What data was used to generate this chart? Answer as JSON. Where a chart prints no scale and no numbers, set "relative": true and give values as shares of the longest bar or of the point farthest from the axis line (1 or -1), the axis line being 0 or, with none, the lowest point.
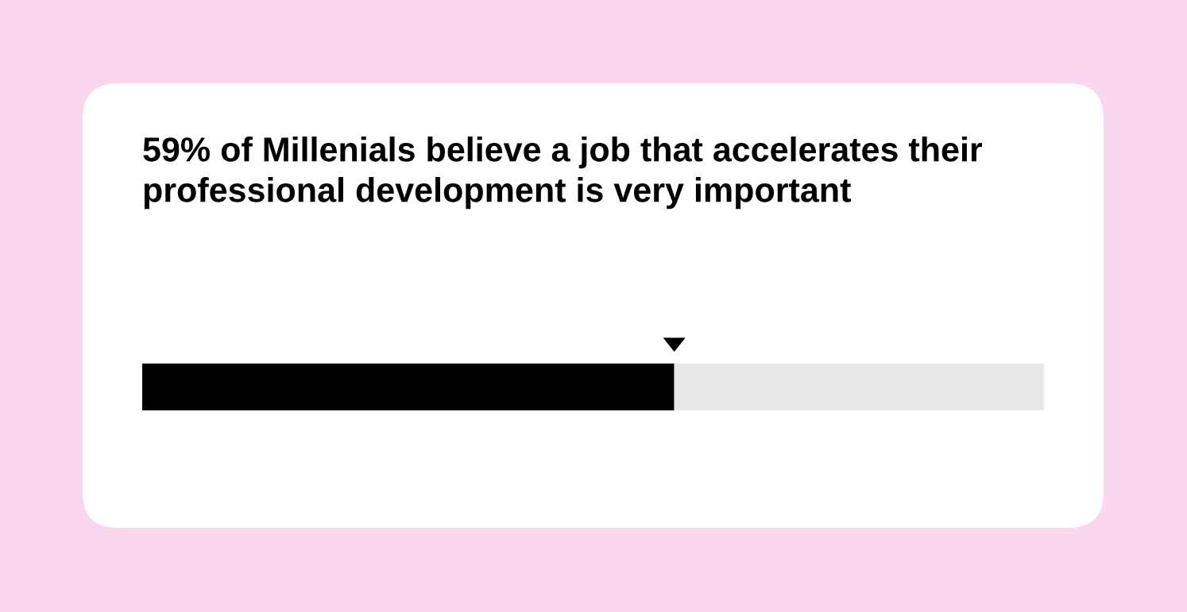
{
  "chart_data": {
    "type": "bar",
    "orientation": "horizontal",
    "stacked": true,
    "relative": true,
    "title": "59% of Millenials believe a job that accelerates their professional development is very important",
    "categories": [
      null
    ],
    "series": [
      {
        "color": "#000000",
        "values": [
          0.59
        ]
      },
      {
        "color": "#e8e8e8",
        "values": [
          0.41
        ]
      }
    ],
    "legend": false
  }
}
